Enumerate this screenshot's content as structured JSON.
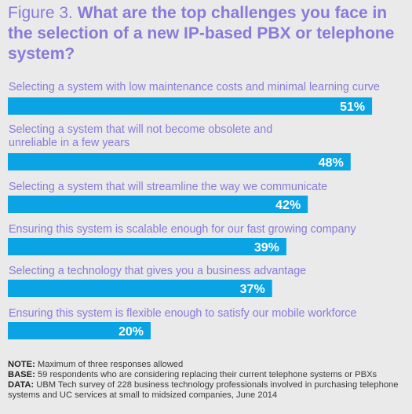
{
  "header": {
    "figure_label": "Figure 3.",
    "question": "What are the top challenges you face in the selection of a new IP-based PBX or telephone system?"
  },
  "chart_data": {
    "type": "bar",
    "orientation": "horizontal",
    "categories": [
      "Selecting a system with low maintenance costs and minimal learning curve",
      "Selecting a system that will not become obsolete and unreliable in a few years",
      "Selecting a system that will streamline the way we communicate",
      "Ensuring this system is scalable enough for our fast growing company",
      "Selecting a technology that gives you a business advantage",
      "Ensuring this system is flexible enough to satisfy our mobile workforce"
    ],
    "values": [
      51,
      48,
      42,
      39,
      37,
      20
    ],
    "value_labels": [
      "51%",
      "48%",
      "42%",
      "39%",
      "37%",
      "20%"
    ],
    "unit": "%",
    "bar_color": "#0aa3e3",
    "grid": false
  },
  "notes": {
    "note_label": "NOTE:",
    "note_text": " Maximum of three responses allowed",
    "base_label": "BASE:",
    "base_text": " 59 respondents who are considering replacing their current telephone systems or PBXs",
    "data_label": "DATA:",
    "data_text": " UBM Tech survey of 228 business technology professionals involved in purchasing telephone systems and UC services at small to midsized companies, June 2014"
  },
  "colors": {
    "background": "#eaeaeb",
    "accent_text": "#8a7ad8",
    "bar": "#0aa3e3"
  }
}
